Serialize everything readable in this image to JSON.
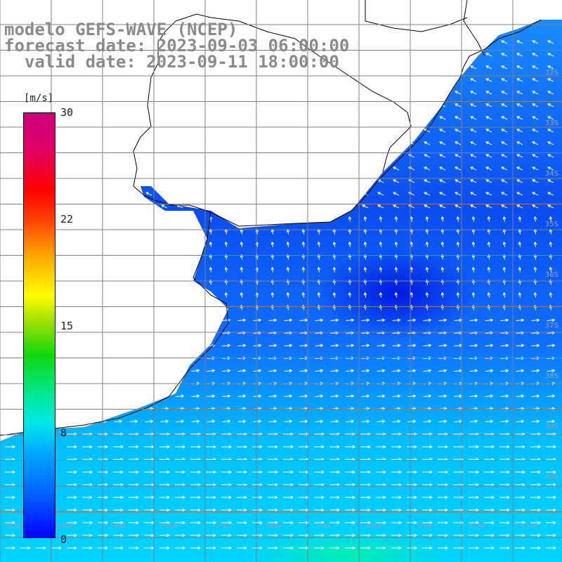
{
  "header": {
    "line1": "modelo GEFS-WAVE (NCEP)",
    "line2": "forecast date: 2023-09-03 06:00:00",
    "line3": "  valid date: 2023-09-11 18:00:00"
  },
  "colorbar": {
    "unit": "[m/s]",
    "ticks": [
      "30",
      "22",
      "15",
      "8",
      "0"
    ],
    "range": [
      0,
      30
    ],
    "colors": [
      "#0000ff",
      "#00a8ff",
      "#00e8e8",
      "#10d810",
      "#ffff00",
      "#ff4000",
      "#ff0000",
      "#c8007a"
    ]
  },
  "map": {
    "land_color": "#ffffff",
    "grid": true,
    "grid_color": "#808080",
    "lat_labels": [
      "32S",
      "33S",
      "34S",
      "35S",
      "36S",
      "37S",
      "38S",
      "39S",
      "40S"
    ],
    "lon_labels": [
      "61W",
      "60W",
      "59W",
      "58W",
      "57W",
      "56W",
      "55W",
      "54W",
      "53W",
      "52W",
      "51W"
    ],
    "field": "wind speed with direction arrows"
  }
}
